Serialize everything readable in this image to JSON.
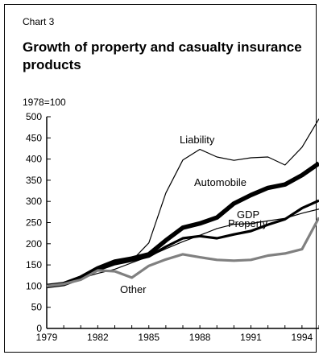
{
  "chart_label": "Chart 3",
  "chart_title": "Growth of property and casualty insurance products",
  "base_note": "1978=100",
  "chart_data": {
    "type": "line",
    "title": "Growth of property and casualty insurance products",
    "ylim": [
      0,
      500
    ],
    "xlim": [
      1979,
      1995
    ],
    "y_ticks": [
      0,
      50,
      100,
      150,
      200,
      250,
      300,
      350,
      400,
      450,
      500
    ],
    "x_ticks": [
      1979,
      1982,
      1985,
      1988,
      1991,
      1994
    ],
    "x": [
      1979,
      1980,
      1981,
      1982,
      1983,
      1984,
      1985,
      1986,
      1987,
      1988,
      1989,
      1990,
      1991,
      1992,
      1993,
      1994,
      1995
    ],
    "series": [
      {
        "name": "Liability",
        "color": "#000000",
        "weight": "thin",
        "values": [
          100,
          106,
          118,
          140,
          153,
          160,
          202,
          320,
          398,
          423,
          405,
          397,
          403,
          405,
          386,
          428,
          495
        ]
      },
      {
        "name": "Automobile",
        "color": "#000000",
        "weight": "heavy",
        "values": [
          100,
          105,
          120,
          142,
          158,
          165,
          175,
          208,
          238,
          248,
          262,
          295,
          315,
          332,
          340,
          362,
          390
        ]
      },
      {
        "name": "GDP",
        "color": "#000000",
        "weight": "thin",
        "values": [
          100,
          106,
          118,
          130,
          140,
          155,
          170,
          188,
          205,
          220,
          236,
          246,
          248,
          254,
          260,
          272,
          282
        ]
      },
      {
        "name": "",
        "color": "#000000",
        "weight": "medium",
        "values": [
          100,
          106,
          120,
          138,
          152,
          160,
          170,
          193,
          213,
          218,
          213,
          222,
          230,
          245,
          258,
          284,
          302
        ]
      },
      {
        "name": "Other",
        "color": "#808080",
        "weight": "medium",
        "values": [
          100,
          105,
          115,
          137,
          135,
          120,
          148,
          163,
          175,
          168,
          162,
          160,
          162,
          172,
          177,
          187,
          262
        ]
      }
    ],
    "annotations": [
      {
        "text": "Liability",
        "series": "Liability"
      },
      {
        "text": "Automobile",
        "series": "Automobile"
      },
      {
        "text": "GDP",
        "series": "GDP"
      },
      {
        "text": "Property",
        "series": ""
      },
      {
        "text": "Other",
        "series": "Other"
      }
    ],
    "grid": false
  }
}
